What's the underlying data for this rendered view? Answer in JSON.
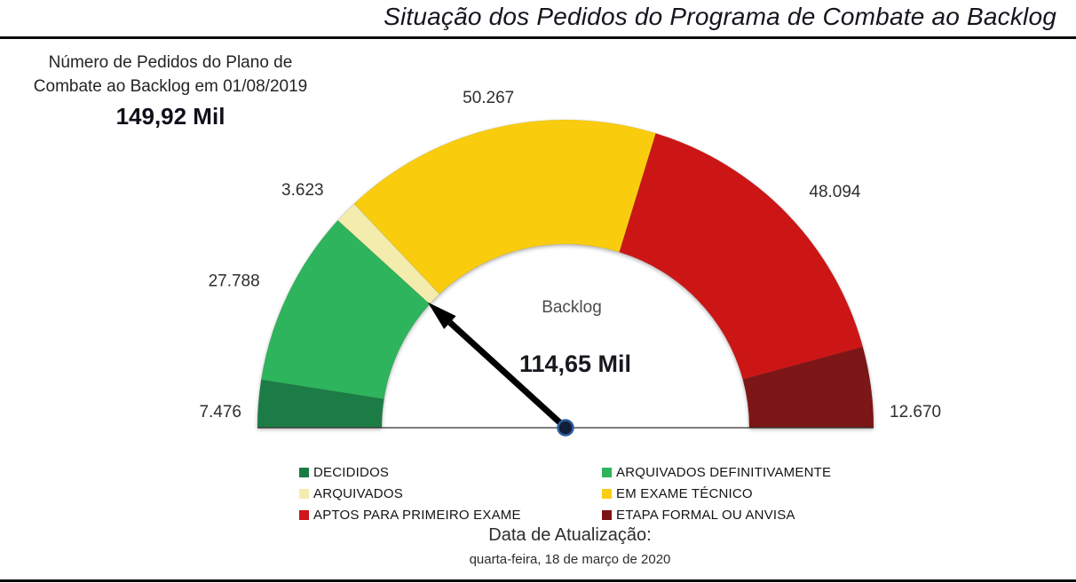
{
  "title": "Situação dos Pedidos do Programa de Combate ao Backlog",
  "header_note": {
    "line1": "Número de Pedidos do Plano de",
    "line2": "Combate ao Backlog em 01/08/2019",
    "value": "149,92 Mil"
  },
  "footer": {
    "label": "Data de Atualização:",
    "date": "quarta-feira, 18 de março de 2020"
  },
  "chart_data": {
    "type": "gauge",
    "shape": "half-donut",
    "legend_position": "bottom",
    "center_label": "Backlog",
    "center_value": "114,65 Mil",
    "needle_value": 114654,
    "total": 149918,
    "total_display": "149,92 Mil",
    "segments": [
      {
        "name": "DECIDIDOS",
        "value": 7476,
        "label": "7.476",
        "color": "#1B7B44"
      },
      {
        "name": "ARQUIVADOS DEFINITIVAMENTE",
        "value": 27788,
        "label": "27.788",
        "color": "#2FB45C"
      },
      {
        "name": "ARQUIVADOS",
        "value": 3623,
        "label": "3.623",
        "color": "#F3ECAC"
      },
      {
        "name": "EM EXAME TÉCNICO",
        "value": 50267,
        "label": "50.267",
        "color": "#F9CD11"
      },
      {
        "name": "APTOS PARA PRIMEIRO EXAME",
        "value": 48094,
        "label": "48.094",
        "color": "#CC1619"
      },
      {
        "name": "ETAPA FORMAL OU ANVISA",
        "value": 12670,
        "label": "12.670",
        "color": "#7D1215"
      }
    ]
  }
}
